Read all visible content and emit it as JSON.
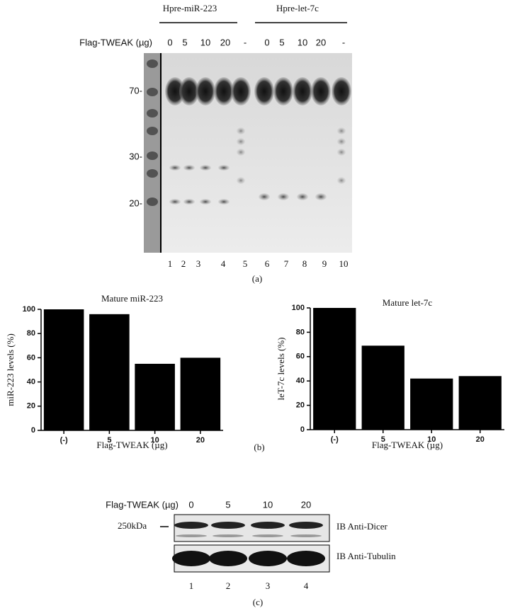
{
  "panel_a": {
    "groups": [
      "Hpre-miR-223",
      "Hpre-let-7c"
    ],
    "dose_label": "Flag-TWEAK (µg)",
    "doses": [
      "0",
      "5",
      "10",
      "20",
      "-",
      "0",
      "5",
      "10",
      "20",
      "-"
    ],
    "markers": [
      "70-",
      "30-",
      "20-"
    ],
    "lanes": [
      "1",
      "2",
      "3",
      "4",
      "5",
      "6",
      "7",
      "8",
      "9",
      "10"
    ],
    "panel_label": "(a)"
  },
  "chart_data": [
    {
      "type": "bar",
      "title": "Mature miR-223",
      "ylabel": "miR-223 levels (%)",
      "xlabel": "Flag-TWEAK (µg)",
      "categories": [
        "(-)",
        "5",
        "10",
        "20"
      ],
      "values": [
        100,
        96,
        55,
        60
      ],
      "color": "#000000",
      "ylim": [
        0,
        100
      ],
      "yticks": [
        0,
        20,
        40,
        60,
        80,
        100
      ]
    },
    {
      "type": "bar",
      "title": "Mature let-7c",
      "ylabel": "leT-7c levels (%)",
      "xlabel": "Flag-TWEAK (µg)",
      "categories": [
        "(-)",
        "5",
        "10",
        "20"
      ],
      "values": [
        100,
        69,
        42,
        44
      ],
      "color": "#000000",
      "ylim": [
        0,
        100
      ],
      "yticks": [
        0,
        20,
        40,
        60,
        80,
        100
      ]
    }
  ],
  "panel_b_label": "(b)",
  "panel_c": {
    "dose_label": "Flag-TWEAK (µg)",
    "doses": [
      "0",
      "5",
      "10",
      "20"
    ],
    "size_marker": "250kDa",
    "blots": [
      "IB Anti-Dicer",
      "IB Anti-Tubulin"
    ],
    "lanes": [
      "1",
      "2",
      "3",
      "4"
    ],
    "panel_label": "(c)"
  }
}
